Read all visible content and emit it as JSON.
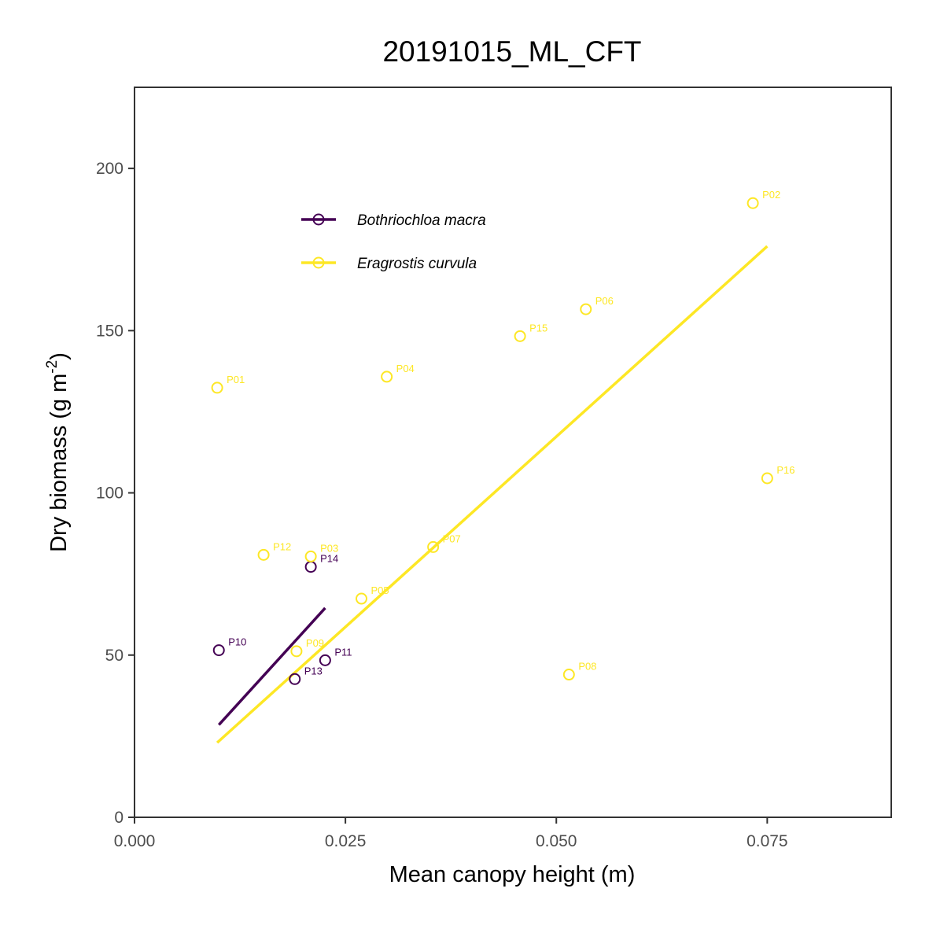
{
  "chart_data": {
    "type": "scatter",
    "title": "20191015_ML_CFT",
    "xlabel": "Mean canopy height (m)",
    "ylabel_main": "Dry biomass (g m",
    "ylabel_sup": "-2",
    "ylabel_close": ")",
    "xlim": [
      0,
      0.0897
    ],
    "ylim": [
      0,
      225
    ],
    "x_ticks": [
      {
        "value": 0.0,
        "label": "0.000"
      },
      {
        "value": 0.025,
        "label": "0.025"
      },
      {
        "value": 0.05,
        "label": "0.050"
      },
      {
        "value": 0.075,
        "label": "0.075"
      }
    ],
    "y_ticks": [
      {
        "value": 0,
        "label": "0"
      },
      {
        "value": 50,
        "label": "50"
      },
      {
        "value": 100,
        "label": "100"
      },
      {
        "value": 150,
        "label": "150"
      },
      {
        "value": 200,
        "label": "200"
      }
    ],
    "grid": false,
    "legend_position": "top-left",
    "series": [
      {
        "name": "Bothriochloa macra",
        "color": "#440154",
        "points": [
          {
            "label": "P10",
            "x": 0.01,
            "y": 51.5
          },
          {
            "label": "P11",
            "x": 0.0226,
            "y": 48.4
          },
          {
            "label": "P13",
            "x": 0.019,
            "y": 42.6
          },
          {
            "label": "P14",
            "x": 0.0209,
            "y": 77.2
          }
        ],
        "fit": {
          "x": [
            0.01,
            0.0226
          ],
          "y": [
            28.5,
            64.5
          ]
        }
      },
      {
        "name": "Eragrostis curvula",
        "color": "#FDE725",
        "points": [
          {
            "label": "P01",
            "x": 0.0098,
            "y": 132.4
          },
          {
            "label": "P02",
            "x": 0.0733,
            "y": 189.3
          },
          {
            "label": "P03",
            "x": 0.0209,
            "y": 80.4
          },
          {
            "label": "P04",
            "x": 0.0299,
            "y": 135.8
          },
          {
            "label": "P05",
            "x": 0.0269,
            "y": 67.4
          },
          {
            "label": "P06",
            "x": 0.0535,
            "y": 156.6
          },
          {
            "label": "P07",
            "x": 0.0354,
            "y": 83.3
          },
          {
            "label": "P08",
            "x": 0.0515,
            "y": 44.0
          },
          {
            "label": "P09",
            "x": 0.0192,
            "y": 51.2
          },
          {
            "label": "P12",
            "x": 0.0153,
            "y": 80.9
          },
          {
            "label": "P15",
            "x": 0.0457,
            "y": 148.3
          },
          {
            "label": "P16",
            "x": 0.075,
            "y": 104.5
          }
        ],
        "fit": {
          "x": [
            0.0098,
            0.075
          ],
          "y": [
            23.0,
            176.0
          ]
        }
      }
    ]
  }
}
